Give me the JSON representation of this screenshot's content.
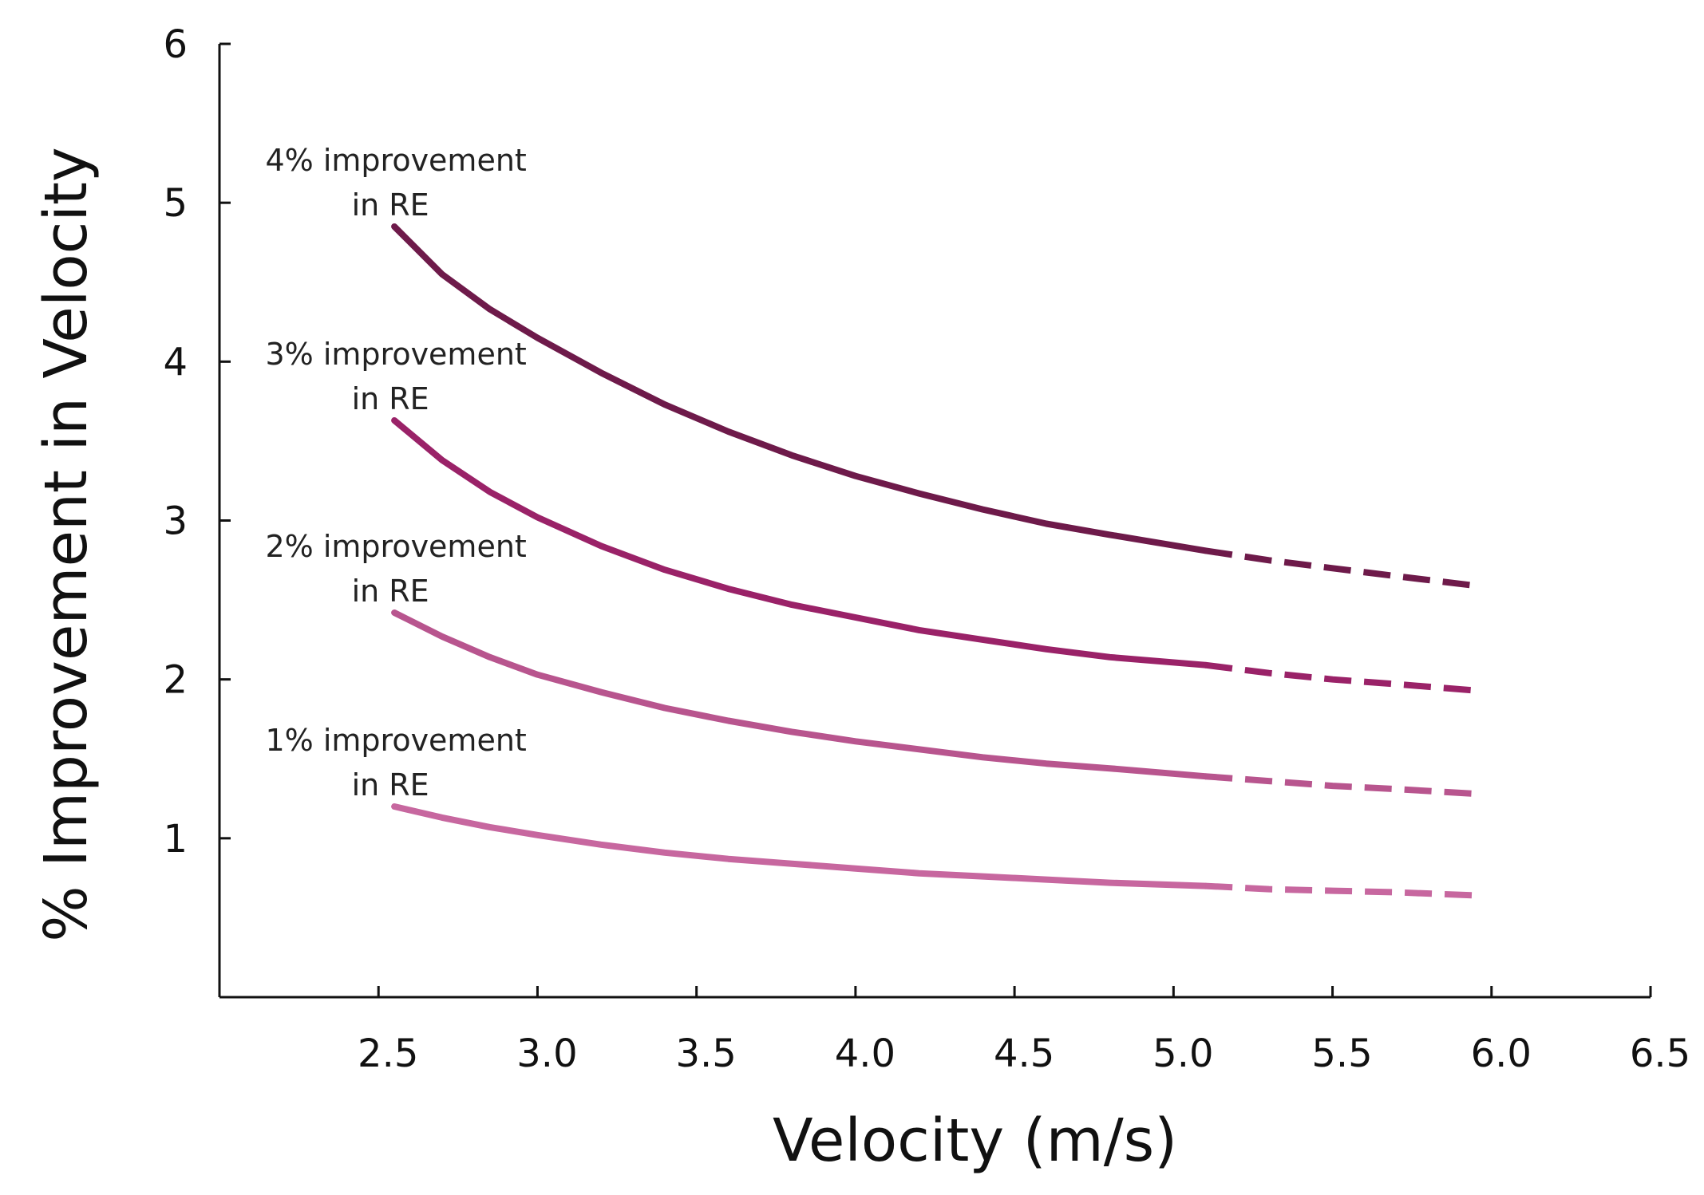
{
  "chart_data": {
    "type": "line",
    "title": "",
    "xlabel": "Velocity (m/s)",
    "ylabel": "% Improvement in Velocity",
    "xlim": [
      2.0,
      6.5
    ],
    "ylim": [
      0,
      6
    ],
    "x_ticks": [
      2.5,
      3.0,
      3.5,
      4.0,
      4.5,
      5.0,
      5.5,
      6.0,
      6.5
    ],
    "x_tick_labels": [
      "2.5",
      "3.0",
      "3.5",
      "4.0",
      "4.5",
      "5.0",
      "5.5",
      "6.0",
      "6.5"
    ],
    "y_ticks": [
      1,
      2,
      3,
      4,
      5,
      6
    ],
    "y_tick_labels": [
      "1",
      "2",
      "3",
      "4",
      "5",
      "6"
    ],
    "grid": false,
    "legend": "none",
    "solid_x_range": [
      2.55,
      5.1
    ],
    "dashed_x_range": [
      5.1,
      5.95
    ],
    "series": [
      {
        "name": "4% improvement in RE",
        "label_lines": [
          "4% improvement",
          "in RE"
        ],
        "color": "#6e1a4a",
        "x": [
          2.55,
          2.7,
          2.85,
          3.0,
          3.2,
          3.4,
          3.6,
          3.8,
          4.0,
          4.2,
          4.4,
          4.6,
          4.8,
          5.1,
          5.3,
          5.5,
          5.7,
          5.95
        ],
        "y": [
          4.85,
          4.55,
          4.33,
          4.15,
          3.93,
          3.73,
          3.56,
          3.41,
          3.28,
          3.17,
          3.07,
          2.98,
          2.91,
          2.81,
          2.75,
          2.7,
          2.65,
          2.59
        ]
      },
      {
        "name": "3% improvement in RE",
        "label_lines": [
          "3% improvement",
          "in RE"
        ],
        "color": "#9a2268",
        "x": [
          2.55,
          2.7,
          2.85,
          3.0,
          3.2,
          3.4,
          3.6,
          3.8,
          4.0,
          4.2,
          4.4,
          4.6,
          4.8,
          5.1,
          5.3,
          5.5,
          5.7,
          5.95
        ],
        "y": [
          3.63,
          3.38,
          3.18,
          3.02,
          2.84,
          2.69,
          2.57,
          2.47,
          2.39,
          2.31,
          2.25,
          2.19,
          2.14,
          2.09,
          2.04,
          2.0,
          1.97,
          1.93
        ]
      },
      {
        "name": "2% improvement in RE",
        "label_lines": [
          "2% improvement",
          "in RE"
        ],
        "color": "#b8558e",
        "x": [
          2.55,
          2.7,
          2.85,
          3.0,
          3.2,
          3.4,
          3.6,
          3.8,
          4.0,
          4.2,
          4.4,
          4.6,
          4.8,
          5.1,
          5.3,
          5.5,
          5.7,
          5.95
        ],
        "y": [
          2.42,
          2.27,
          2.14,
          2.03,
          1.92,
          1.82,
          1.74,
          1.67,
          1.61,
          1.56,
          1.51,
          1.47,
          1.44,
          1.39,
          1.36,
          1.33,
          1.31,
          1.28
        ]
      },
      {
        "name": "1% improvement in RE",
        "label_lines": [
          "1% improvement",
          "in RE"
        ],
        "color": "#c7679f",
        "x": [
          2.55,
          2.7,
          2.85,
          3.0,
          3.2,
          3.4,
          3.6,
          3.8,
          4.0,
          4.2,
          4.4,
          4.6,
          4.8,
          5.1,
          5.3,
          5.5,
          5.7,
          5.95
        ],
        "y": [
          1.2,
          1.13,
          1.07,
          1.02,
          0.96,
          0.91,
          0.87,
          0.84,
          0.81,
          0.78,
          0.76,
          0.74,
          0.72,
          0.7,
          0.68,
          0.67,
          0.66,
          0.64
        ]
      }
    ]
  }
}
